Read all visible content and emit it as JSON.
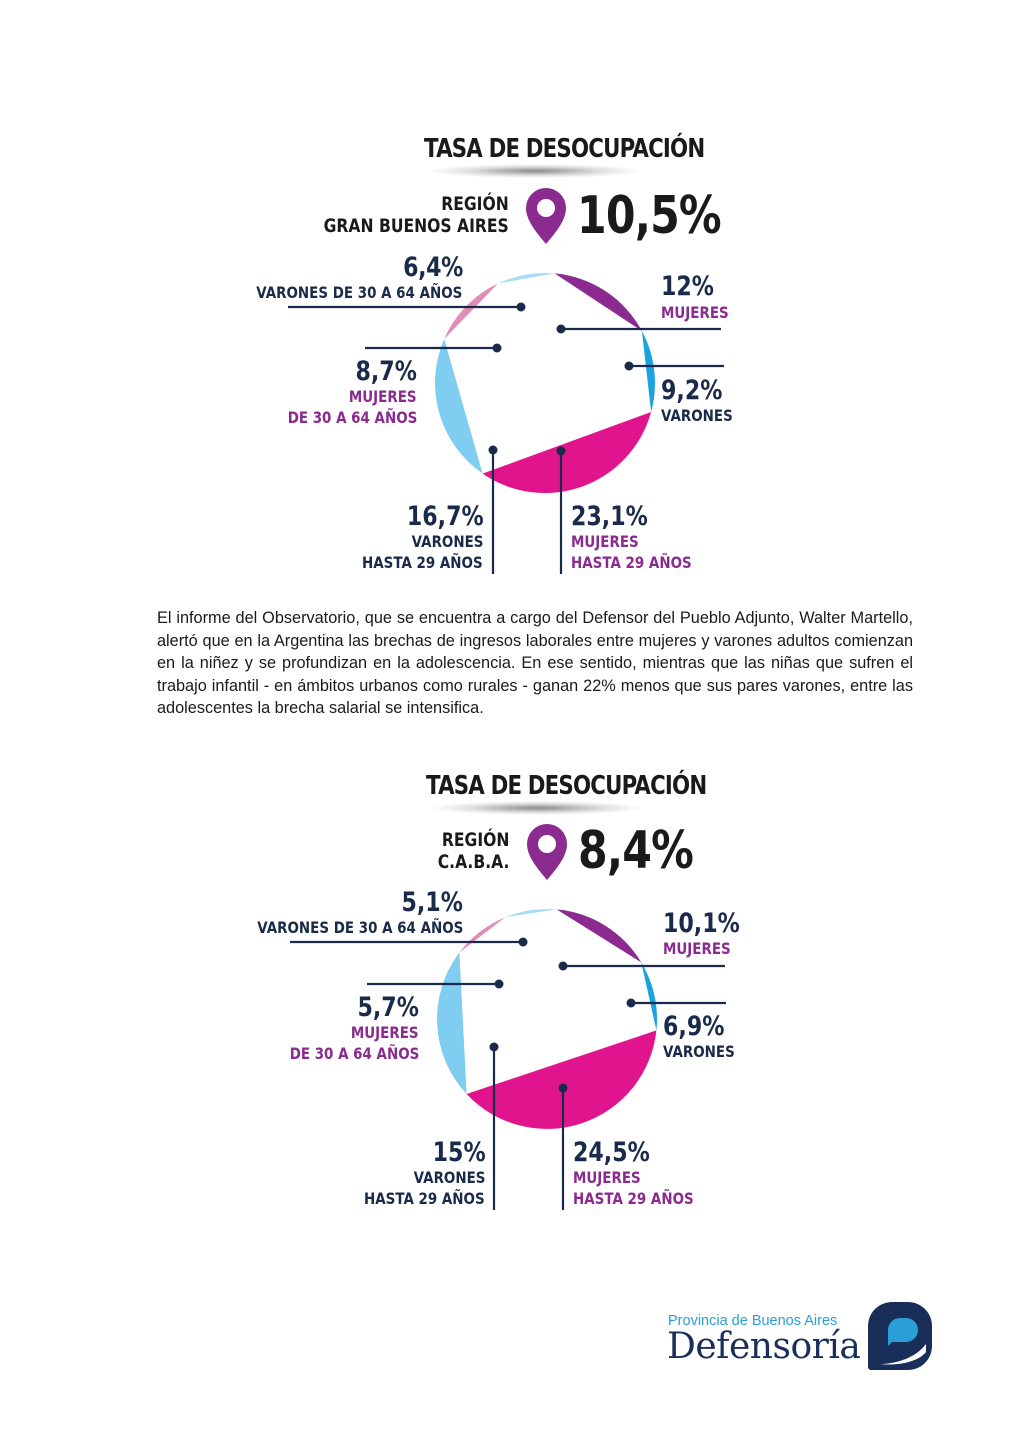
{
  "chart_data": [
    {
      "type": "pie",
      "title": "TASA DE DESOCUPACIÓN",
      "region_label": [
        "REGIÓN",
        "GRAN BUENOS AIRES"
      ],
      "total": "10,5%",
      "slices": [
        {
          "value": 12,
          "value_label": "12%",
          "label": [
            "MUJERES"
          ],
          "color": "#8b2a8f",
          "text_color": "magenta"
        },
        {
          "value": 9.2,
          "value_label": "9,2%",
          "label": [
            "VARONES"
          ],
          "color": "#1aa3e0",
          "text_color": "navy"
        },
        {
          "value": 23.1,
          "value_label": "23,1%",
          "label": [
            "MUJERES",
            "HASTA 29 AÑOS"
          ],
          "color": "#e0148c",
          "text_color": "magenta"
        },
        {
          "value": 16.7,
          "value_label": "16,7%",
          "label": [
            "VARONES",
            "HASTA 29 AÑOS"
          ],
          "color": "#7fcdf0",
          "text_color": "navy"
        },
        {
          "value": 8.7,
          "value_label": "8,7%",
          "label": [
            "MUJERES",
            "DE 30 A 64 AÑOS"
          ],
          "color": "#e08cb8",
          "text_color": "magenta"
        },
        {
          "value": 6.4,
          "value_label": "6,4%",
          "label": [
            "VARONES DE 30 A 64 AÑOS"
          ],
          "color": "#a8dcf2",
          "text_color": "navy"
        }
      ]
    },
    {
      "type": "pie",
      "title": "TASA DE DESOCUPACIÓN",
      "region_label": [
        "REGIÓN",
        "C.A.B.A."
      ],
      "total": "8,4%",
      "slices": [
        {
          "value": 10.1,
          "value_label": "10,1%",
          "label": [
            "MUJERES"
          ],
          "color": "#8b2a8f",
          "text_color": "magenta"
        },
        {
          "value": 6.9,
          "value_label": "6,9%",
          "label": [
            "VARONES"
          ],
          "color": "#1aa3e0",
          "text_color": "navy"
        },
        {
          "value": 24.5,
          "value_label": "24,5%",
          "label": [
            "MUJERES",
            "HASTA 29 AÑOS"
          ],
          "color": "#e0148c",
          "text_color": "magenta"
        },
        {
          "value": 15,
          "value_label": "15%",
          "label": [
            "VARONES",
            "HASTA 29 AÑOS"
          ],
          "color": "#7fcdf0",
          "text_color": "navy"
        },
        {
          "value": 5.7,
          "value_label": "5,7%",
          "label": [
            "MUJERES",
            "DE 30 A 64 AÑOS"
          ],
          "color": "#e08cb8",
          "text_color": "magenta"
        },
        {
          "value": 5.1,
          "value_label": "5,1%",
          "label": [
            "VARONES DE 30 A 64 AÑOS"
          ],
          "color": "#a8dcf2",
          "text_color": "navy"
        }
      ]
    }
  ],
  "paragraph": "El informe del Observatorio, que se encuentra a cargo del Defensor del Pueblo Adjunto, Walter Martello, alertó que en la Argentina las brechas de ingresos laborales entre mujeres y varones adultos comienzan en la niñez y se profundizan en la adolescencia. En ese sentido, mientras que las niñas que sufren el trabajo infantil - en ámbitos urbanos como rurales - ganan 22% menos que sus pares varones, entre las adolescentes la brecha salarial se intensifica.",
  "logo": {
    "top_text": "Provincia de Buenos Aires",
    "main_text": "Defensoría",
    "colors": {
      "navy": "#1a2e5a",
      "light_blue": "#2a9fd6"
    }
  },
  "icons": {
    "location_pin": "location-pin-icon"
  }
}
